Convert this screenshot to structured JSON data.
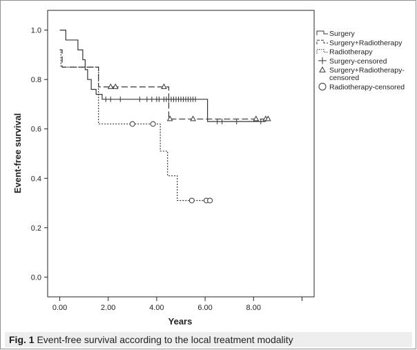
{
  "chart_data": {
    "type": "line",
    "subtype": "kaplan-meier step",
    "xlabel": "Years",
    "ylabel": "Event-free survival",
    "xlim": [
      -0.5,
      10.5
    ],
    "ylim": [
      -0.08,
      1.08
    ],
    "x_ticks": [
      0,
      2,
      4,
      6,
      8,
      10
    ],
    "x_tick_labels": [
      "0.00",
      "2.00",
      "4.00",
      "6.00",
      "8.00",
      ""
    ],
    "y_ticks": [
      0,
      0.2,
      0.4,
      0.6,
      0.8,
      1.0
    ],
    "y_tick_labels": [
      "0.0",
      "0.2",
      "0.4",
      "0.6",
      "0.8",
      "1.0"
    ],
    "grid": false,
    "legend_position": "top-right outside",
    "legend": [
      {
        "label": "Surgery",
        "symbol": "line-solid"
      },
      {
        "label": "Surgery+Radiotherapy",
        "symbol": "line-dashed"
      },
      {
        "label": "Radiotherapy",
        "symbol": "line-dotted"
      },
      {
        "label": "Surgery-censored",
        "symbol": "plus"
      },
      {
        "label": "Surgery+Radiotherapy-\ncensored",
        "symbol": "triangle"
      },
      {
        "label": "Radiotherapy-censored",
        "symbol": "circle"
      }
    ],
    "series": [
      {
        "name": "Surgery",
        "style": "solid",
        "steps": [
          [
            0,
            1.0
          ],
          [
            0.25,
            0.96
          ],
          [
            0.75,
            0.92
          ],
          [
            0.95,
            0.88
          ],
          [
            1.05,
            0.84
          ],
          [
            1.15,
            0.8
          ],
          [
            1.3,
            0.76
          ],
          [
            1.5,
            0.74
          ],
          [
            1.75,
            0.72
          ],
          [
            6.1,
            0.63
          ],
          [
            8.5,
            0.63
          ]
        ],
        "censored": [
          1.9,
          2.1,
          2.5,
          3.3,
          3.6,
          3.8,
          4.0,
          4.1,
          4.3,
          4.4,
          4.5,
          4.6,
          4.7,
          4.8,
          4.9,
          5.0,
          5.1,
          5.2,
          5.3,
          5.4,
          5.5,
          5.6,
          6.5,
          6.7,
          7.3,
          8.3
        ]
      },
      {
        "name": "Surgery+Radiotherapy",
        "style": "dashed",
        "steps": [
          [
            0,
            0.92
          ],
          [
            0.1,
            0.85
          ],
          [
            1.6,
            0.77
          ],
          [
            4.5,
            0.64
          ],
          [
            8.6,
            0.64
          ]
        ],
        "censored": [
          2.1,
          2.3,
          4.3,
          4.55,
          5.5,
          8.1,
          8.5,
          8.6
        ]
      },
      {
        "name": "Radiotherapy",
        "style": "dotted",
        "steps": [
          [
            0,
            0.92
          ],
          [
            0.05,
            0.85
          ],
          [
            1.6,
            0.62
          ],
          [
            4.15,
            0.51
          ],
          [
            4.45,
            0.41
          ],
          [
            4.85,
            0.31
          ],
          [
            6.3,
            0.31
          ]
        ],
        "censored": [
          3.0,
          3.85,
          5.45,
          6.05,
          6.2
        ]
      }
    ]
  },
  "caption": {
    "label": "Fig. 1",
    "text": " Event-free survival according to the local treatment modality"
  }
}
